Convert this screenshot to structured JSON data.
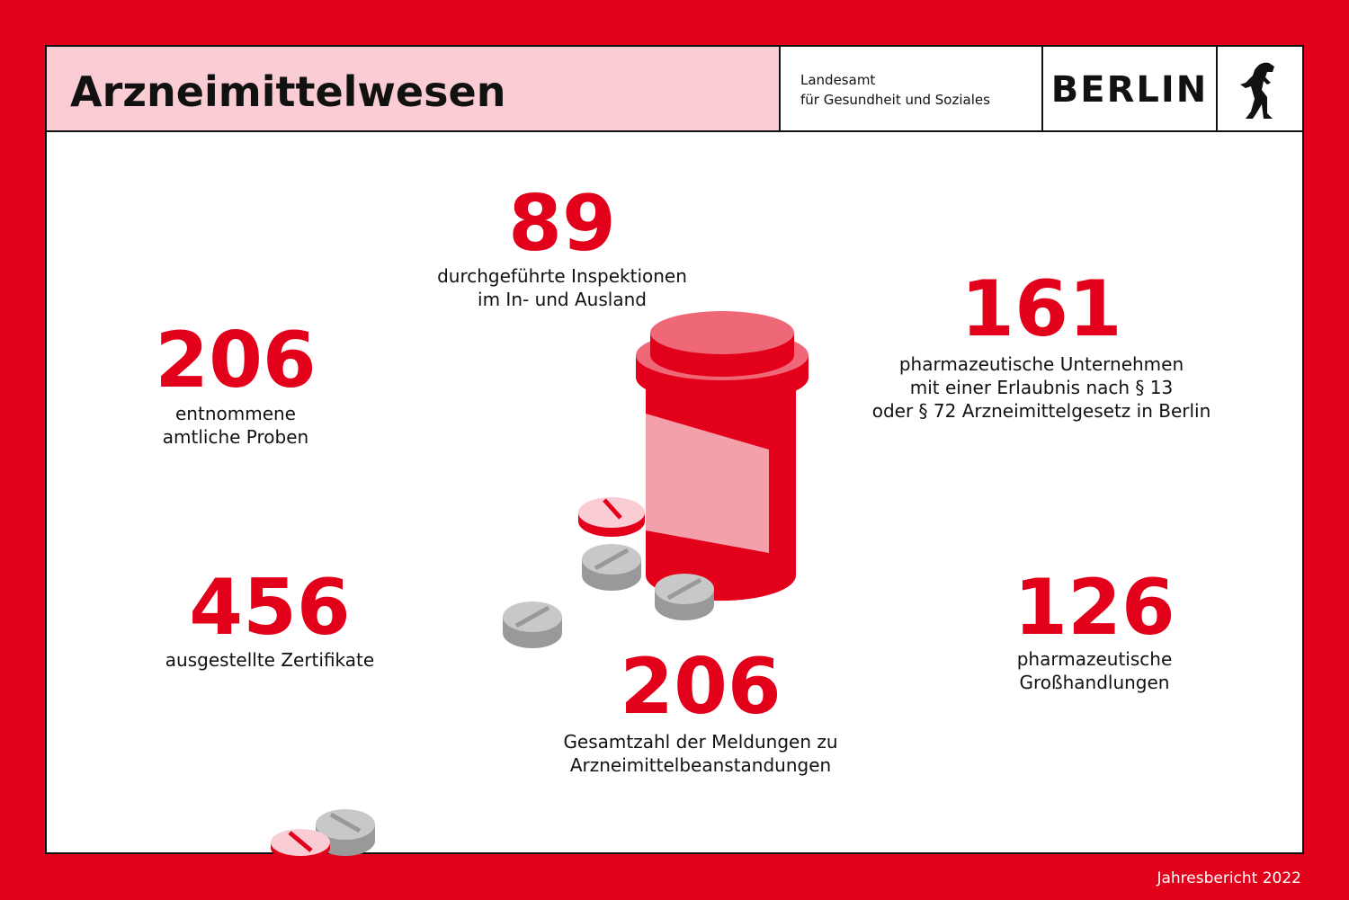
{
  "header": {
    "title": "Arzneimittelwesen",
    "agency": [
      "Landesamt",
      "für Gesundheit und Soziales"
    ],
    "logo": "BERLIN"
  },
  "stats": [
    {
      "value": 89,
      "label": [
        "durchgeführte Inspektionen",
        "im In- und Ausland"
      ]
    },
    {
      "value": 206,
      "label": [
        "entnommene",
        "amtliche Proben"
      ]
    },
    {
      "value": 161,
      "label": [
        "pharmazeutische Unternehmen",
        "mit einer Erlaubnis nach § 13",
        "oder § 72 Arzneimittelgesetz in Berlin"
      ]
    },
    {
      "value": 456,
      "label": [
        "ausgestellte Zertifikate"
      ]
    },
    {
      "value": 206,
      "label": [
        "Gesamtzahl der Meldungen zu",
        "Arzneimittelbeanstandungen"
      ]
    },
    {
      "value": 126,
      "label": [
        "pharmazeutische",
        "Großhandlungen"
      ]
    }
  ],
  "footer": "Jahresbericht 2022"
}
